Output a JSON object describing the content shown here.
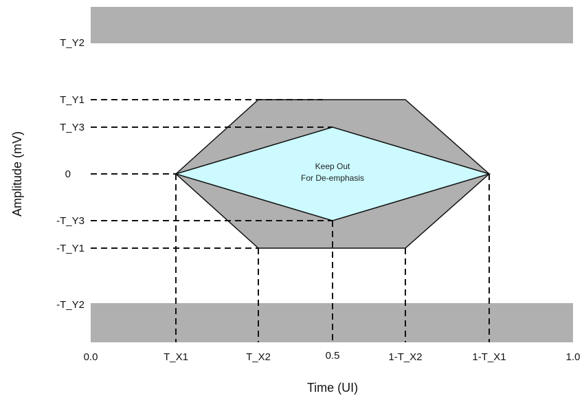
{
  "axes": {
    "x_title": "Time (UI)",
    "y_title": "Amplitude (mV)"
  },
  "x_ticks": [
    "0.0",
    "T_X1",
    "T_X2",
    "0.5",
    "1-T_X2",
    "1-T_X1",
    "1.0"
  ],
  "y_ticks": [
    "T_Y2",
    "T_Y1",
    "T_Y3",
    "0",
    "-T_Y3",
    "-T_Y1",
    "-T_Y2"
  ],
  "regions": {
    "inner_label_line1": "Keep Out",
    "inner_label_line2": "For De-emphasis"
  },
  "colors": {
    "keepout_gray": "#b0b0b0",
    "deemphasis_cyan": "#ccfaff",
    "outline": "#111111"
  }
}
